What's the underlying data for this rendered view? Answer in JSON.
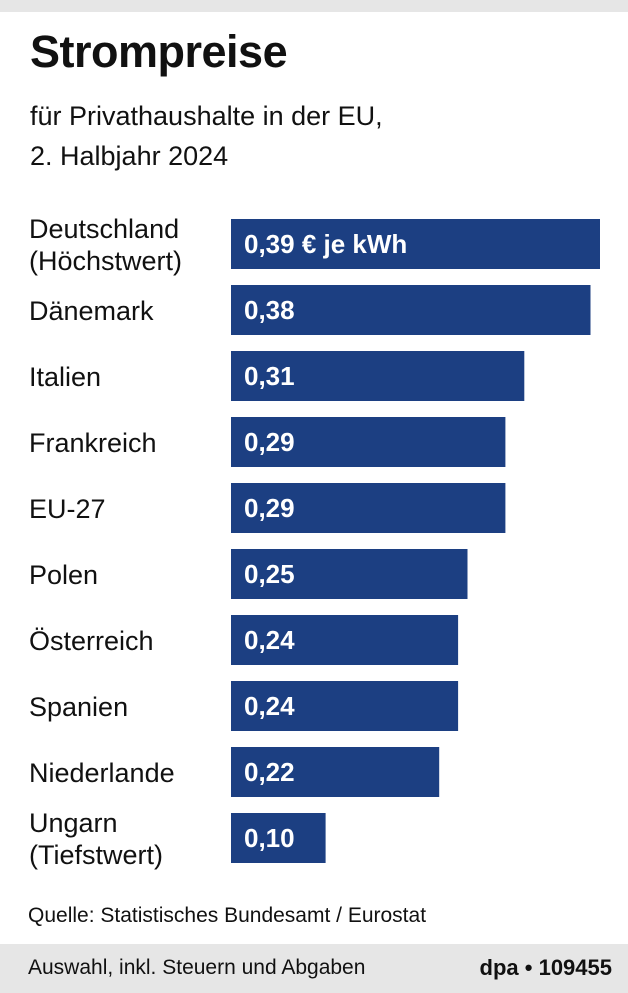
{
  "header": {
    "title": "Strompreise",
    "subtitle_line1": "für Privathaushalte in der EU,",
    "subtitle_line2": "2. Halbjahr 2024"
  },
  "chart_data": {
    "type": "bar",
    "orientation": "horizontal",
    "categories": [
      [
        "Deutschland",
        "(Höchstwert)"
      ],
      [
        "Dänemark"
      ],
      [
        "Italien"
      ],
      [
        "Frankreich"
      ],
      [
        "EU-27"
      ],
      [
        "Polen"
      ],
      [
        "Österreich"
      ],
      [
        "Spanien"
      ],
      [
        "Niederlande"
      ],
      [
        "Ungarn",
        "(Tiefstwert)"
      ]
    ],
    "values": [
      0.39,
      0.38,
      0.31,
      0.29,
      0.29,
      0.25,
      0.24,
      0.24,
      0.22,
      0.1
    ],
    "value_labels": [
      "0,39 € je kWh",
      "0,38",
      "0,31",
      "0,29",
      "0,29",
      "0,25",
      "0,24",
      "0,24",
      "0,22",
      "0,10"
    ],
    "unit": "€ je kWh",
    "xlim": [
      0,
      0.39
    ],
    "bar_color": "#1c3f82",
    "grid": false,
    "legend": "none"
  },
  "footer": {
    "source": "Quelle: Statistisches Bundesamt / Eurostat",
    "note": "Auswahl, inkl. Steuern und Abgaben",
    "credit": "dpa • 109455"
  },
  "colors": {
    "bar": "#1c3f82",
    "footer_background": "#e6e6e6",
    "text": "#111111"
  }
}
